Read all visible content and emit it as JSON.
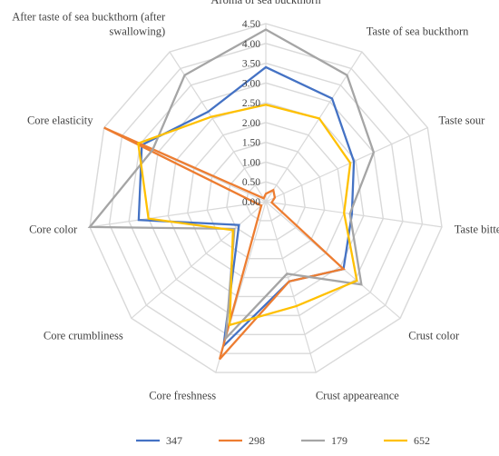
{
  "chart_data": {
    "type": "radar",
    "axes": [
      [
        "Aroma of sea buckthorn"
      ],
      [
        "Taste of sea buckthorn"
      ],
      [
        "Taste sour"
      ],
      [
        "Taste bitter"
      ],
      [
        "Crust color"
      ],
      [
        "Crust appeareance"
      ],
      [
        "Core freshness"
      ],
      [
        "Core crumbliness"
      ],
      [
        "Core color"
      ],
      [
        "Core elasticity"
      ],
      [
        "After taste of sea buckthorn (after",
        "swallowing)"
      ]
    ],
    "r_ticks": [
      "0.00",
      "0.50",
      "1.00",
      "1.50",
      "2.00",
      "2.50",
      "3.00",
      "3.50",
      "4.00",
      "4.50"
    ],
    "r_range": [
      0,
      4.5
    ],
    "grid": true,
    "legend_position": "bottom",
    "series": [
      {
        "name": "347",
        "color": "#4472C4",
        "values": [
          3.4,
          3.1,
          2.45,
          2.2,
          2.6,
          2.1,
          3.8,
          0.9,
          3.25,
          3.45,
          2.7
        ]
      },
      {
        "name": "298",
        "color": "#ED7D31",
        "values": [
          0.2,
          0.35,
          0.25,
          0.15,
          2.6,
          2.1,
          4.15,
          0.15,
          0.25,
          4.5,
          0.1
        ]
      },
      {
        "name": "179",
        "color": "#A5A5A5",
        "values": [
          4.35,
          3.8,
          3.0,
          2.15,
          3.2,
          1.9,
          3.6,
          1.05,
          4.5,
          3.15,
          3.8
        ]
      },
      {
        "name": "652",
        "color": "#FFC000",
        "values": [
          2.45,
          2.5,
          2.35,
          2.0,
          3.05,
          2.75,
          3.25,
          1.1,
          3.0,
          3.55,
          2.55
        ]
      }
    ]
  }
}
